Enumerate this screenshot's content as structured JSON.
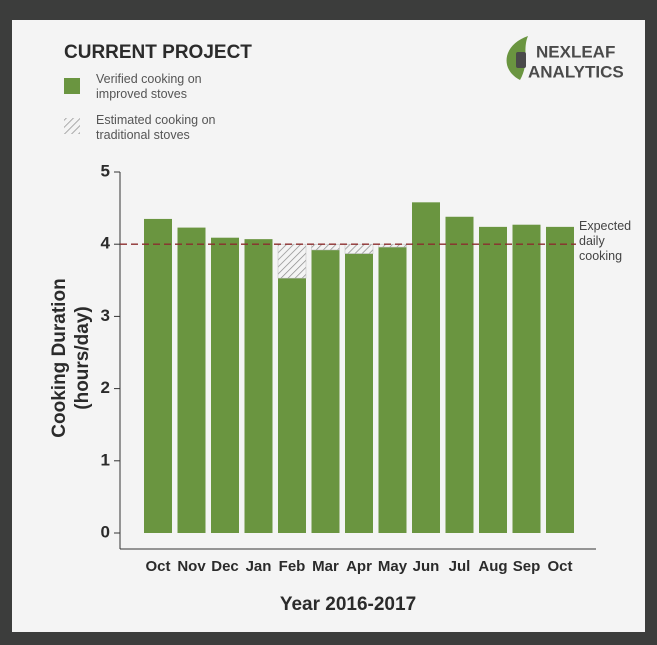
{
  "title": "CURRENT PROJECT",
  "logo": {
    "line1": "NEXLEAF",
    "line2": "ANALYTICS"
  },
  "chart_data": {
    "type": "bar",
    "xlabel": "Year 2016-2017",
    "ylabel": "Cooking Duration (hours/day)",
    "categories": [
      "Oct",
      "Nov",
      "Dec",
      "Jan",
      "Feb",
      "Mar",
      "Apr",
      "May",
      "Jun",
      "Jul",
      "Aug",
      "Sep",
      "Oct"
    ],
    "series": [
      {
        "name": "Verified cooking on improved stoves",
        "color": "#6a9540",
        "values": [
          4.35,
          4.23,
          4.09,
          4.07,
          3.53,
          3.92,
          3.87,
          3.96,
          4.58,
          4.38,
          4.24,
          4.27,
          4.24
        ]
      },
      {
        "name": "Estimated cooking on traditional stoves",
        "color": "#8a8a8a",
        "values": [
          null,
          null,
          null,
          null,
          0.47,
          0.08,
          0.13,
          0.04,
          null,
          null,
          null,
          null,
          null
        ]
      }
    ],
    "stacked": true,
    "reference_line": {
      "value": 4,
      "label": "Expected daily cooking",
      "color": "#8b2e2e"
    },
    "ylim": [
      0,
      5
    ],
    "yticks": [
      0,
      1,
      2,
      3,
      4,
      5
    ]
  }
}
